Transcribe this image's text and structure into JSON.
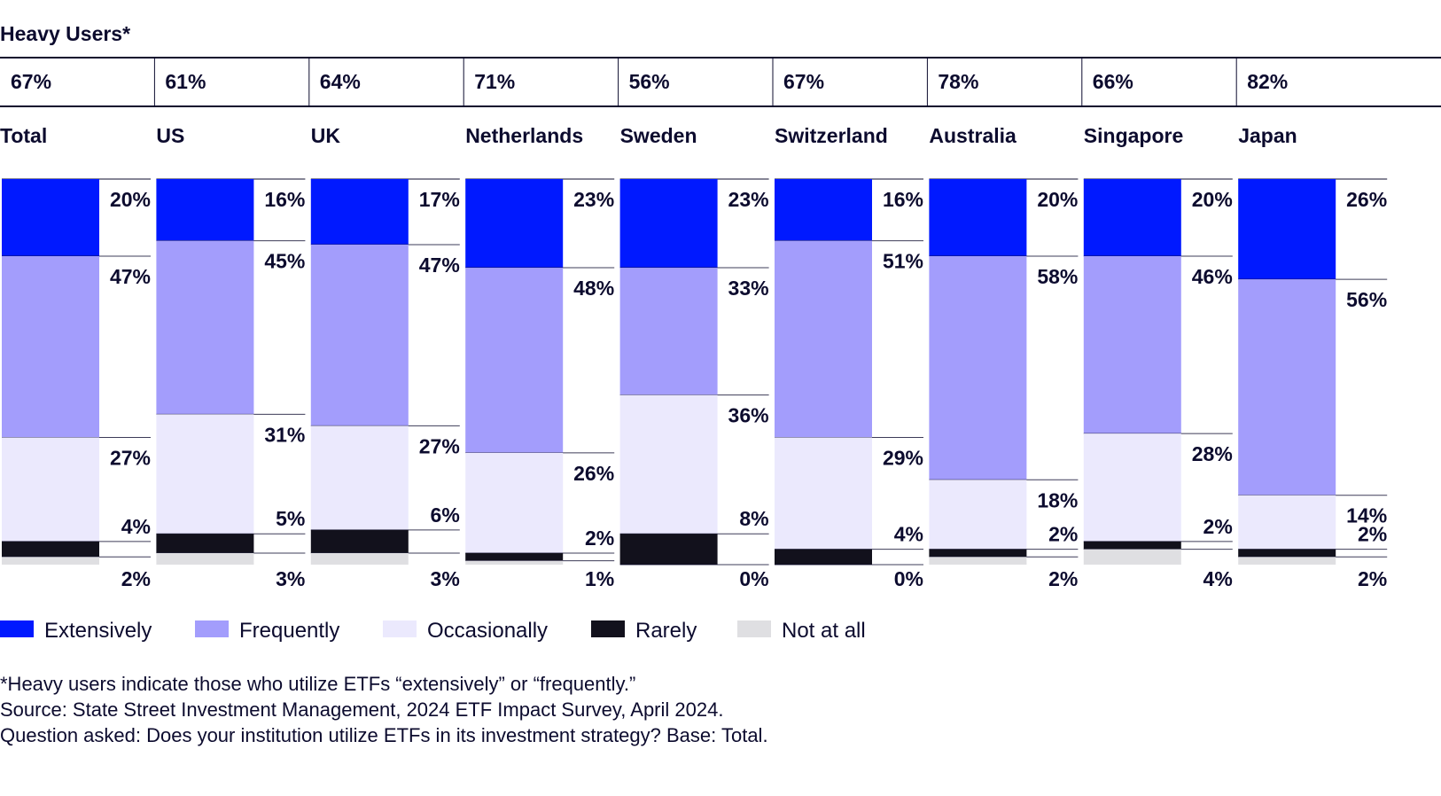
{
  "chart_data": {
    "type": "bar",
    "stacked": true,
    "percent_stacked": true,
    "heavy_users_label": "Heavy Users*",
    "categories": [
      "Total",
      "US",
      "UK",
      "Netherlands",
      "Sweden",
      "Switzerland",
      "Australia",
      "Singapore",
      "Japan"
    ],
    "heavy_users": [
      "67%",
      "61%",
      "64%",
      "71%",
      "56%",
      "67%",
      "78%",
      "66%",
      "82%"
    ],
    "series": [
      {
        "name": "Extensively",
        "color": "#0019ff",
        "values": [
          20,
          16,
          17,
          23,
          23,
          16,
          20,
          20,
          26
        ]
      },
      {
        "name": "Frequently",
        "color": "#a39dfc",
        "values": [
          47,
          45,
          47,
          48,
          33,
          51,
          58,
          46,
          56
        ]
      },
      {
        "name": "Occasionally",
        "color": "#ebe9fd",
        "values": [
          27,
          31,
          27,
          26,
          36,
          29,
          18,
          28,
          14
        ]
      },
      {
        "name": "Rarely",
        "color": "#12111c",
        "values": [
          4,
          5,
          6,
          2,
          8,
          4,
          2,
          2,
          2
        ]
      },
      {
        "name": "Not at all",
        "color": "#dfdfe2",
        "values": [
          2,
          3,
          3,
          1,
          0,
          0,
          2,
          4,
          2
        ]
      }
    ],
    "ylim": [
      0,
      100
    ],
    "legend": "bottom-left",
    "footnotes": [
      "*Heavy users indicate those who utilize ETFs “extensively” or “frequently.”",
      "Source: State Street Investment Management, 2024 ETF Impact Survey, April 2024.",
      "Question asked: Does your institution utilize ETFs in its investment strategy? Base: Total."
    ]
  }
}
